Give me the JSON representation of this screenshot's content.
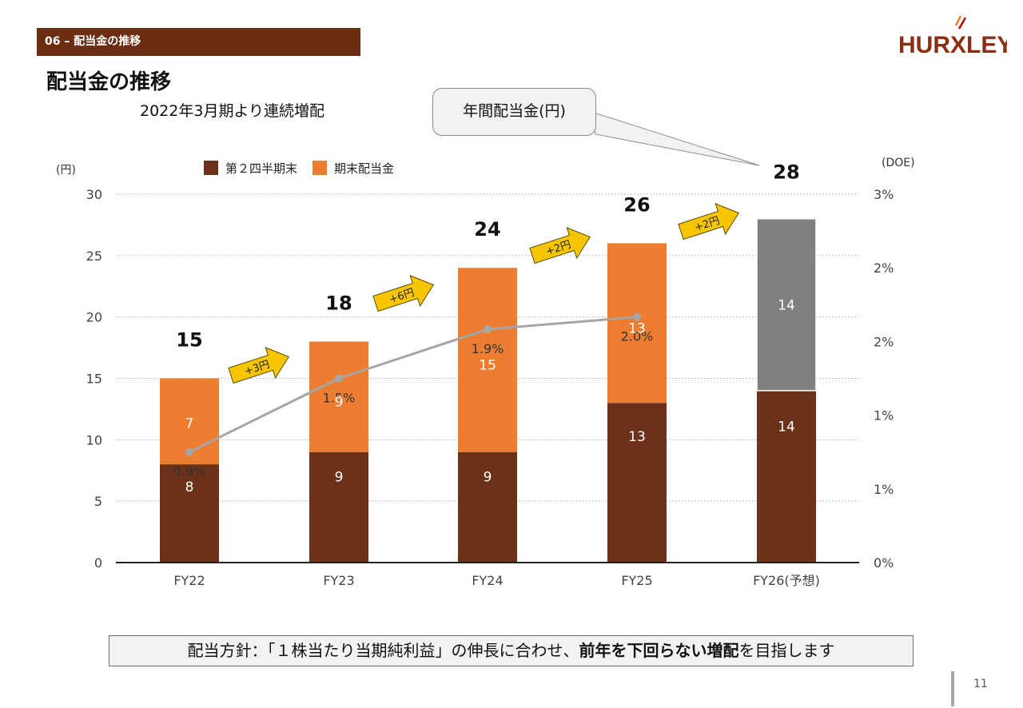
{
  "header": {
    "section_tag": "06 – 配当金の推移",
    "title": "配当金の推移",
    "subtitle": "2022年3月期より連続増配",
    "logo_text": "HURXLEY"
  },
  "callout": {
    "text": "年間配当金(円)"
  },
  "chart_data": {
    "type": "bar",
    "stacked": true,
    "categories": [
      "FY22",
      "FY23",
      "FY24",
      "FY25",
      "FY26(予想)"
    ],
    "y_left_label": "(円)",
    "y_right_label": "(DOE)",
    "ylim": [
      0,
      30
    ],
    "y_ticks": [
      "0",
      "5",
      "10",
      "15",
      "20",
      "25",
      "30"
    ],
    "y_right_ticks": [
      "0%",
      "1%",
      "1%",
      "2%",
      "2%",
      "3%"
    ],
    "legend_position": "top-left",
    "grid": true,
    "series": [
      {
        "name": "第２四半期末",
        "color": "#6b3219",
        "values": [
          8,
          9,
          9,
          13,
          14
        ],
        "labels": [
          "8",
          "9",
          "9",
          "13",
          "14"
        ]
      },
      {
        "name": "期末配当金",
        "color": "#ed7d31",
        "values": [
          7,
          9,
          15,
          13,
          14
        ],
        "labels": [
          "7",
          "9",
          "15",
          "13",
          "14"
        ],
        "forecast_color": "#808080"
      }
    ],
    "totals": [
      "15",
      "18",
      "24",
      "26",
      "28"
    ],
    "increments": [
      "+3円",
      "+6円",
      "+2円",
      "+2円"
    ],
    "doe": {
      "values": [
        0.9,
        1.5,
        1.9,
        2.0
      ],
      "labels": [
        "0.9%",
        "1.5%",
        "1.9%",
        "2.0%"
      ],
      "color": "#a6a6a6"
    }
  },
  "colors": {
    "brand": "#6b2e12",
    "accent": "#ed7d31",
    "forecast": "#808080",
    "arrow": "#f7c600"
  },
  "footer": {
    "policy_prefix": "配当方針：「１株当たり当期純利益」の伸長に合わせ、",
    "policy_bold": "前年を下回らない増配",
    "policy_suffix": "を目指します",
    "page_number": "11"
  }
}
